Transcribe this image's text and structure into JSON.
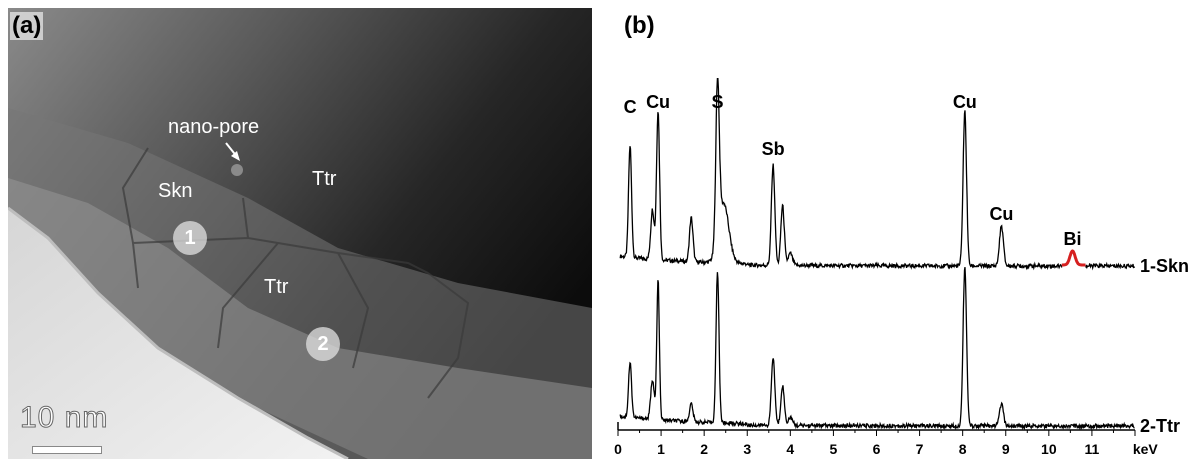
{
  "panel_a": {
    "label": "(a)",
    "annotations": {
      "nano_pore": "nano-pore",
      "skn": "Skn",
      "ttr_upper": "Ttr",
      "ttr_lower": "Ttr"
    },
    "points": [
      "1",
      "2"
    ],
    "scale_bar": "10 nm"
  },
  "panel_b": {
    "label": "(b)",
    "highlight_color": "#d62020"
  },
  "chart_data": {
    "type": "line",
    "xlabel": "keV",
    "xlim": [
      0,
      12
    ],
    "x_ticks": [
      "0",
      "1",
      "2",
      "3",
      "4",
      "5",
      "6",
      "7",
      "8",
      "9",
      "10",
      "11"
    ],
    "y_ticks_shown": false,
    "series": [
      {
        "name": "1-Skn",
        "peaks": [
          {
            "x": 0.28,
            "label": "C"
          },
          {
            "x": 0.93,
            "label": "Cu"
          },
          {
            "x": 2.31,
            "label": "S"
          },
          {
            "x": 3.6,
            "label": "Sb"
          },
          {
            "x": 8.05,
            "label": "Cu"
          },
          {
            "x": 8.9,
            "label": "Cu"
          },
          {
            "x": 10.55,
            "label": "Bi"
          }
        ]
      },
      {
        "name": "2-Ttr",
        "peaks": [
          {
            "x": 0.28,
            "label": ""
          },
          {
            "x": 0.93,
            "label": ""
          },
          {
            "x": 2.31,
            "label": ""
          },
          {
            "x": 3.6,
            "label": ""
          },
          {
            "x": 8.05,
            "label": ""
          },
          {
            "x": 8.9,
            "label": ""
          }
        ]
      }
    ]
  }
}
